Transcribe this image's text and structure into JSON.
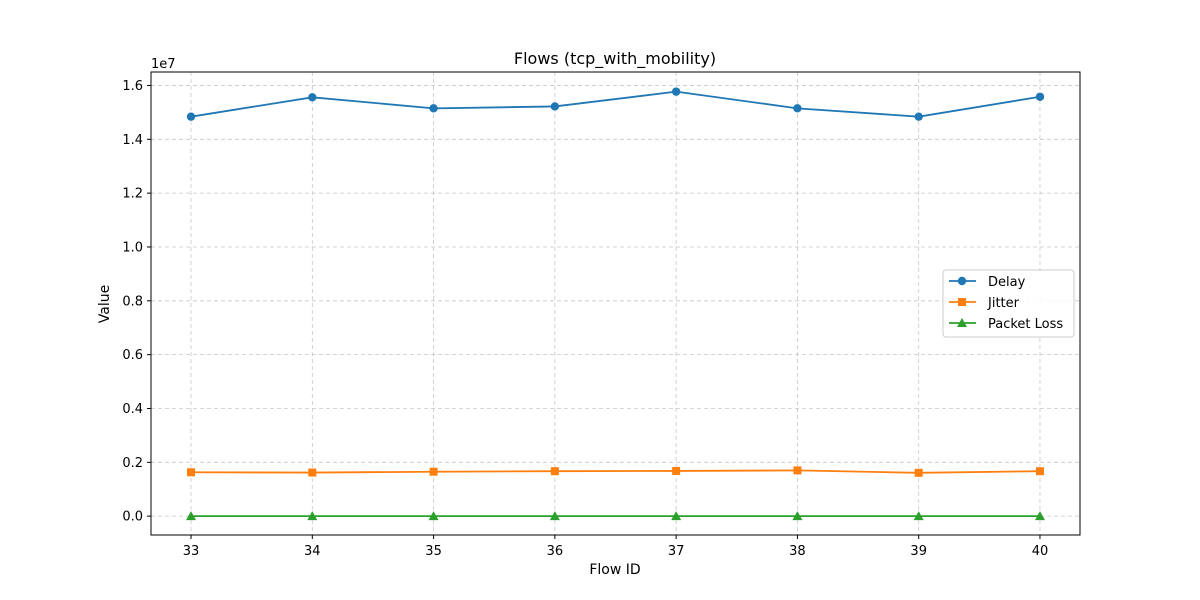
{
  "chart_data": {
    "type": "line",
    "title": "Flows (tcp_with_mobility)",
    "xlabel": "Flow ID",
    "ylabel": "Value",
    "y_offset_label": "1e7",
    "x": [
      33,
      34,
      35,
      36,
      37,
      38,
      39,
      40
    ],
    "xlim": [
      32.67,
      40.33
    ],
    "ylim": [
      -0.07,
      1.65
    ],
    "y_unit_multiplier": 10000000,
    "yticks": [
      0.0,
      0.2,
      0.4,
      0.6,
      0.8,
      1.0,
      1.2,
      1.4,
      1.6
    ],
    "ytick_labels": [
      "0.0",
      "0.2",
      "0.4",
      "0.6",
      "0.8",
      "1.0",
      "1.2",
      "1.4",
      "1.6"
    ],
    "xtick_labels": [
      "33",
      "34",
      "35",
      "36",
      "37",
      "38",
      "39",
      "40"
    ],
    "grid": true,
    "legend_position": "center-right",
    "series": [
      {
        "name": "Delay",
        "color": "#1f77b4",
        "marker": "circle",
        "values": [
          1.484,
          1.556,
          1.515,
          1.522,
          1.577,
          1.515,
          1.484,
          1.558
        ]
      },
      {
        "name": "Jitter",
        "color": "#ff7f0e",
        "marker": "square",
        "values": [
          0.163,
          0.162,
          0.165,
          0.167,
          0.168,
          0.17,
          0.161,
          0.167
        ]
      },
      {
        "name": "Packet Loss",
        "color": "#2ca02c",
        "marker": "triangle",
        "values": [
          0.0,
          0.0,
          0.0,
          0.0,
          0.0,
          0.0,
          0.0,
          0.0
        ]
      }
    ]
  }
}
